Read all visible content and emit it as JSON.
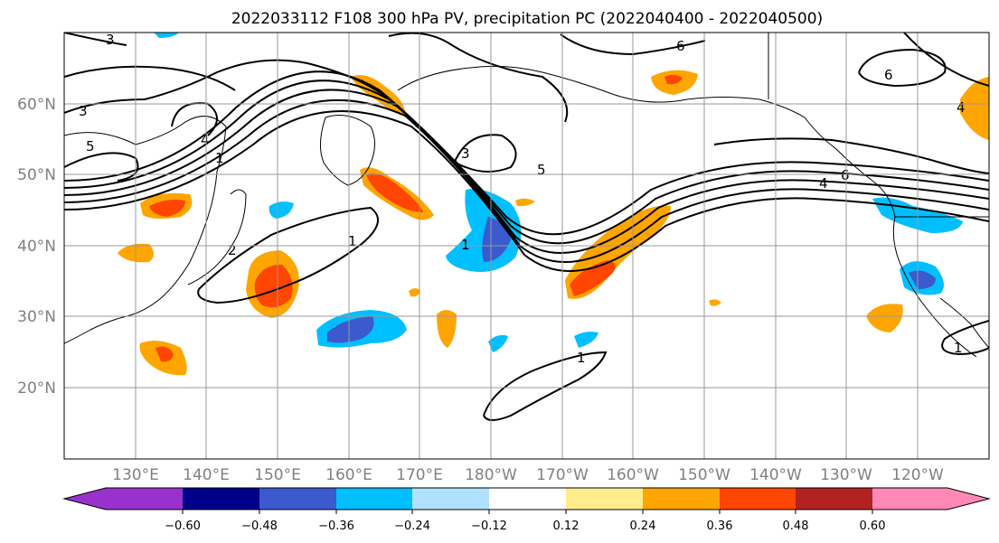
{
  "title": "2022033112 F108 300 hPa PV, precipitation PC (2022040400 - 2022040500)",
  "map": {
    "lat_labels": [
      "60°N",
      "50°N",
      "40°N",
      "30°N",
      "20°N"
    ],
    "lon_labels": [
      "130°E",
      "140°E",
      "150°E",
      "160°E",
      "170°E",
      "180°W",
      "170°W",
      "160°W",
      "150°W",
      "140°W",
      "130°W",
      "120°W"
    ],
    "contour_labels": [
      "3",
      "3",
      "5",
      "4",
      "1",
      "2",
      "1",
      "3",
      "5",
      "1",
      "6",
      "6",
      "6",
      "4",
      "4",
      "1",
      "1"
    ]
  },
  "colorbar": {
    "ticks": [
      "−0.60",
      "−0.48",
      "−0.36",
      "−0.24",
      "−0.12",
      "0.12",
      "0.24",
      "0.36",
      "0.48",
      "0.60"
    ],
    "colors": [
      "#9932cc",
      "#00008b",
      "#3a5acd",
      "#00bfff",
      "#b0e2ff",
      "#ffffff",
      "#ffec8b",
      "#ffa500",
      "#ff4500",
      "#b22222",
      "#ff89b4"
    ]
  }
}
